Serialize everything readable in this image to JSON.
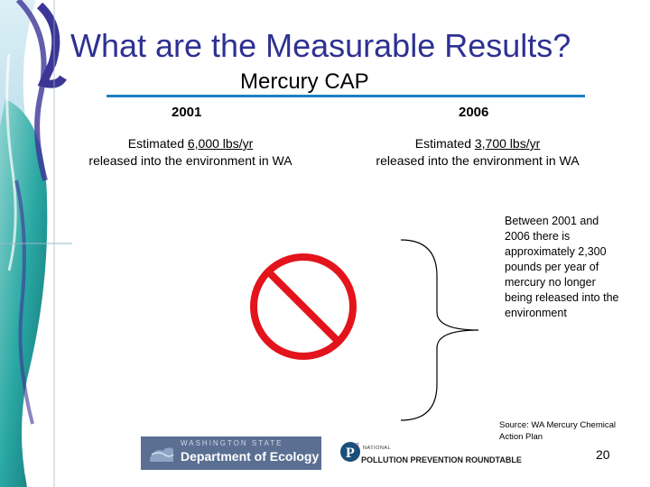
{
  "slide": {
    "title": "What are the Measurable Results?",
    "subtitle": "Mercury CAP",
    "page_number": "20"
  },
  "columns": [
    {
      "year": "2001",
      "estimate_prefix": "Estimated ",
      "estimate_amount": "6,000 lbs/yr",
      "estimate_suffix": "released into the environment in WA"
    },
    {
      "year": "2006",
      "estimate_prefix": "Estimated ",
      "estimate_amount": "3,700 lbs/yr",
      "estimate_suffix": "released into the environment in WA"
    }
  ],
  "note": "Between 2001 and 2006 there is approximately 2,300 pounds per year of mercury no longer being released into the environment",
  "source": "Source: WA Mercury Chemical Action Plan",
  "logos": {
    "ecology_small": "WASHINGTON STATE",
    "ecology_big": "Department of Ecology",
    "p2r_small": "NATIONAL",
    "p2r_name": "POLLUTION PREVENTION ROUNDTABLE"
  },
  "colors": {
    "title": "#2e3192",
    "rule": "#1e7fc3",
    "prohibition": "#e3141b",
    "sidebar_teal": "#2aa8a3",
    "sidebar_purple": "#3d3596"
  },
  "icons": {
    "prohibition": "no-symbol-icon",
    "bracket": "curly-brace-icon"
  }
}
